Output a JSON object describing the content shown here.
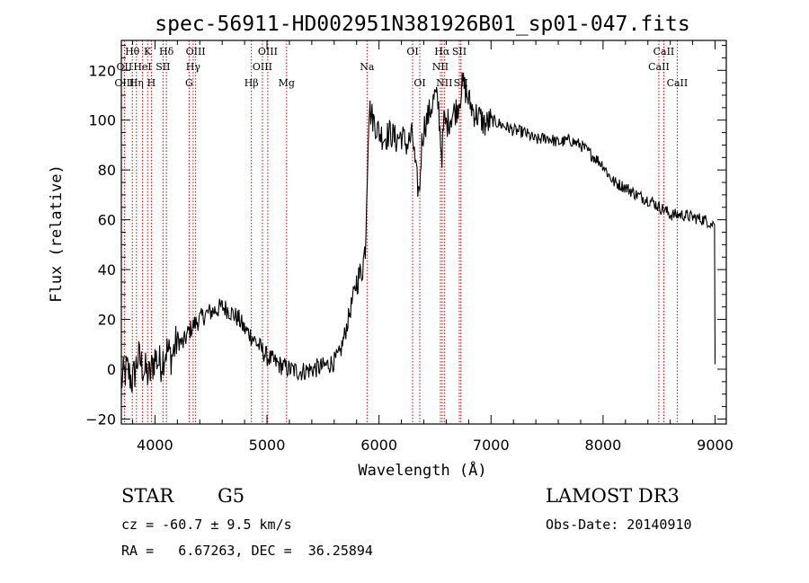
{
  "chart_data": {
    "type": "line",
    "title": "spec-56911-HD002951N381926B01_sp01-047.fits",
    "xlabel": "Wavelength (Å)",
    "ylabel": "Flux (relative)",
    "xlim": [
      3700,
      9100
    ],
    "ylim": [
      -22,
      132
    ],
    "x_ticks": [
      4000,
      5000,
      6000,
      7000,
      8000,
      9000
    ],
    "y_ticks": [
      -20,
      0,
      20,
      40,
      60,
      80,
      100,
      120
    ],
    "series": [
      {
        "name": "flux",
        "x": [
          3700,
          3750,
          3800,
          3850,
          3900,
          3950,
          4000,
          4050,
          4100,
          4150,
          4200,
          4250,
          4300,
          4350,
          4400,
          4450,
          4500,
          4550,
          4600,
          4650,
          4700,
          4750,
          4800,
          4850,
          4900,
          4950,
          5000,
          5100,
          5200,
          5300,
          5400,
          5500,
          5600,
          5650,
          5700,
          5750,
          5800,
          5850,
          5880,
          5890,
          5900,
          5910,
          5950,
          6000,
          6050,
          6100,
          6150,
          6200,
          6250,
          6300,
          6330,
          6360,
          6380,
          6400,
          6450,
          6500,
          6530,
          6560,
          6580,
          6600,
          6650,
          6700,
          6750,
          6800,
          6850,
          6900,
          6950,
          7000,
          7100,
          7200,
          7300,
          7400,
          7500,
          7600,
          7700,
          7800,
          7900,
          8000,
          8050,
          8100,
          8150,
          8200,
          8300,
          8400,
          8450,
          8500,
          8550,
          8600,
          8700,
          8800,
          8900,
          8950,
          8980,
          9000
        ],
        "y": [
          -5,
          0,
          -5,
          5,
          0,
          -3,
          5,
          2,
          8,
          5,
          12,
          10,
          15,
          18,
          20,
          22,
          23,
          24,
          25,
          24,
          22,
          20,
          16,
          14,
          11,
          8,
          5,
          2,
          0,
          -1,
          0,
          1,
          3,
          6,
          15,
          25,
          35,
          40,
          50,
          70,
          88,
          105,
          100,
          95,
          93,
          95,
          92,
          94,
          90,
          94,
          78,
          70,
          90,
          97,
          103,
          110,
          106,
          85,
          100,
          98,
          102,
          105,
          115,
          108,
          103,
          101,
          98,
          100,
          98,
          96,
          95,
          92,
          93,
          91,
          92,
          90,
          86,
          82,
          78,
          75,
          74,
          73,
          70,
          68,
          67,
          65,
          64,
          62,
          62,
          61,
          60,
          59,
          58,
          2
        ]
      }
    ],
    "line_labels": [
      {
        "label": "Hθ",
        "wave": 3798,
        "row": 0
      },
      {
        "label": "OII",
        "wave": 3727,
        "row": 1
      },
      {
        "label": "OIII",
        "wave": 3727,
        "row": 2
      },
      {
        "label": "K",
        "wave": 3934,
        "row": 0
      },
      {
        "label": "HeI",
        "wave": 3889,
        "row": 1
      },
      {
        "label": "Hη",
        "wave": 3835,
        "row": 2
      },
      {
        "label": "Hδ",
        "wave": 4102,
        "row": 0
      },
      {
        "label": "SII",
        "wave": 4072,
        "row": 1
      },
      {
        "label": "H",
        "wave": 3968,
        "row": 2
      },
      {
        "label": "OIII",
        "wave": 4363,
        "row": 0
      },
      {
        "label": "Hγ",
        "wave": 4341,
        "row": 1
      },
      {
        "label": "G",
        "wave": 4305,
        "row": 2
      },
      {
        "label": "OIII",
        "wave": 5007,
        "row": 0
      },
      {
        "label": "OIII",
        "wave": 4959,
        "row": 1
      },
      {
        "label": "Hβ",
        "wave": 4861,
        "row": 2
      },
      {
        "label": "Mg",
        "wave": 5175,
        "row": 2
      },
      {
        "label": "Na",
        "wave": 5893,
        "row": 1
      },
      {
        "label": "OI",
        "wave": 6300,
        "row": 0
      },
      {
        "label": "OI",
        "wave": 6364,
        "row": 2
      },
      {
        "label": "Hα",
        "wave": 6563,
        "row": 0
      },
      {
        "label": "SII",
        "wave": 6717,
        "row": 0
      },
      {
        "label": "NII",
        "wave": 6548,
        "row": 1
      },
      {
        "label": "NII",
        "wave": 6583,
        "row": 2
      },
      {
        "label": "SII",
        "wave": 6731,
        "row": 2
      },
      {
        "label": "CaII",
        "wave": 8542,
        "row": 0
      },
      {
        "label": "CaII",
        "wave": 8498,
        "row": 1
      },
      {
        "label": "CaII",
        "wave": 8662,
        "row": 2
      }
    ],
    "line_markers": [
      3727,
      3798,
      3835,
      3889,
      3934,
      3968,
      4072,
      4102,
      4305,
      4341,
      4363,
      4861,
      4959,
      5007,
      5175,
      5893,
      6300,
      6364,
      6548,
      6563,
      6583,
      6717,
      6731,
      8498,
      8542,
      8662
    ],
    "marker_color": "#cc0000"
  },
  "info": {
    "class_label": "STAR",
    "subclass": "G5",
    "survey": "LAMOST DR3",
    "redshift": "cz = -60.7 ± 9.5 km/s",
    "obs_date": "Obs-Date: 20140910",
    "coords": "RA =   6.67263, DEC =  36.25894"
  }
}
